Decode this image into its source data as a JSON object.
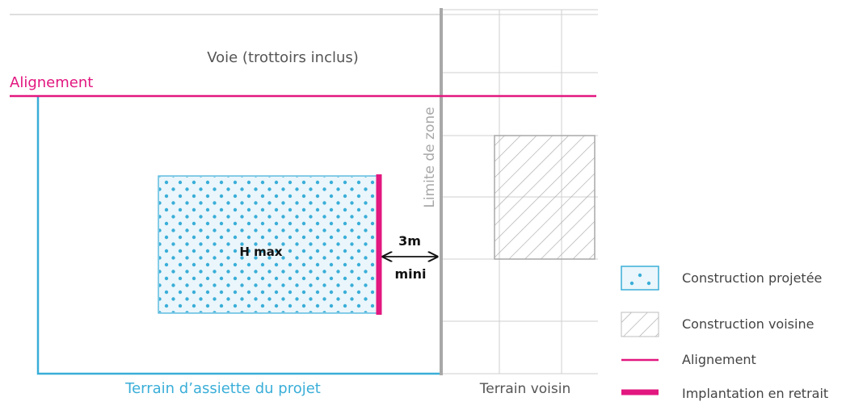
{
  "labels": {
    "road": "Voie (trottoirs inclus)",
    "alignment": "Alignement",
    "zone_limit": "Limite de zone",
    "height_max": "H max",
    "distance_value": "3m",
    "distance_qualifier": "mini",
    "project_plot": "Terrain d’assiette du projet",
    "neighbor_plot": "Terrain voisin"
  },
  "legend": [
    {
      "label": "Construction projetée",
      "symbol": "dotted-box"
    },
    {
      "label": "Construction voisine",
      "symbol": "hatched-box"
    },
    {
      "label": "Alignement",
      "symbol": "thin-magenta-line"
    },
    {
      "label": "Implantation en retrait",
      "symbol": "thick-magenta-line"
    }
  ],
  "colors": {
    "magenta": "#e2177f",
    "cyan": "#3aaed8",
    "cyan_fill": "#eaf6fb",
    "grey": "#a8a8a8",
    "grid": "#cfcfcf",
    "text": "#555555",
    "bold_text": "#111111"
  }
}
